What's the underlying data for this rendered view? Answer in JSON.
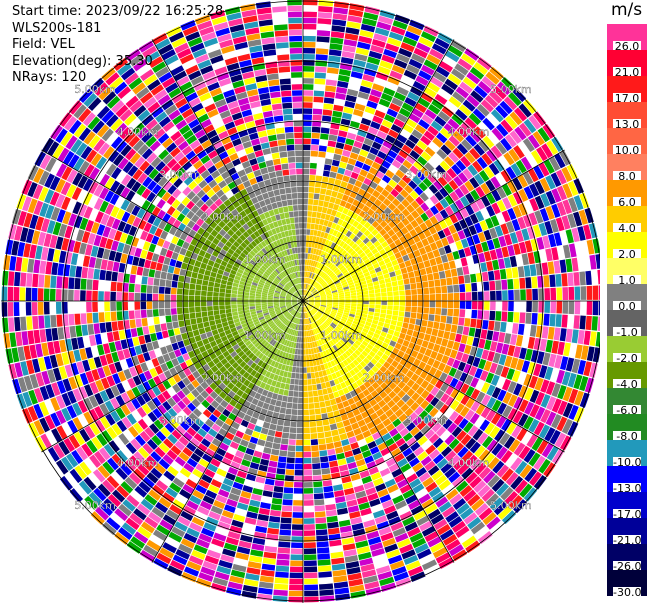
{
  "info": {
    "start_time": "Start time: 2023/09/22 16:25:28",
    "instrument": "WLS200s-181",
    "field": "Field: VEL",
    "elevation": "Elevation(deg): 35.30",
    "nrays": "NRays: 120"
  },
  "chart_data": {
    "type": "ppi",
    "field": "VEL",
    "unit": "m/s",
    "range_rings": [
      {
        "label": "1.00km"
      },
      {
        "label": "2.00km"
      },
      {
        "label": "3.00km"
      },
      {
        "label": "4.00km"
      },
      {
        "label": "5.00km"
      }
    ],
    "colorbar": {
      "title": "m/s",
      "levels": [
        {
          "label": "26.0",
          "color": "#ff3399"
        },
        {
          "label": "21.0",
          "color": "#ff0033"
        },
        {
          "label": "17.0",
          "color": "#ff1a1a"
        },
        {
          "label": "13.0",
          "color": "#ff4d33"
        },
        {
          "label": "10.0",
          "color": "#ff6644"
        },
        {
          "label": "8.0",
          "color": "#ff8060"
        },
        {
          "label": "6.0",
          "color": "#ff9900"
        },
        {
          "label": "4.0",
          "color": "#ffcc00"
        },
        {
          "label": "2.0",
          "color": "#ffff00"
        },
        {
          "label": "1.0",
          "color": "#ffff66"
        },
        {
          "label": "0.0",
          "color": "#808080"
        },
        {
          "label": "-1.0",
          "color": "#646464"
        },
        {
          "label": "-2.0",
          "color": "#99cc33"
        },
        {
          "label": "-4.0",
          "color": "#669900"
        },
        {
          "label": "-6.0",
          "color": "#338833"
        },
        {
          "label": "-8.0",
          "color": "#228b22"
        },
        {
          "label": "-10.0",
          "color": "#2299bb"
        },
        {
          "label": "-13.0",
          "color": "#0000ff"
        },
        {
          "label": "-17.0",
          "color": "#0000cc"
        },
        {
          "label": "-21.0",
          "color": "#000099"
        },
        {
          "label": "-26.0",
          "color": "#000066"
        },
        {
          "label": "-30.0",
          "color": "#00003a"
        }
      ]
    }
  }
}
